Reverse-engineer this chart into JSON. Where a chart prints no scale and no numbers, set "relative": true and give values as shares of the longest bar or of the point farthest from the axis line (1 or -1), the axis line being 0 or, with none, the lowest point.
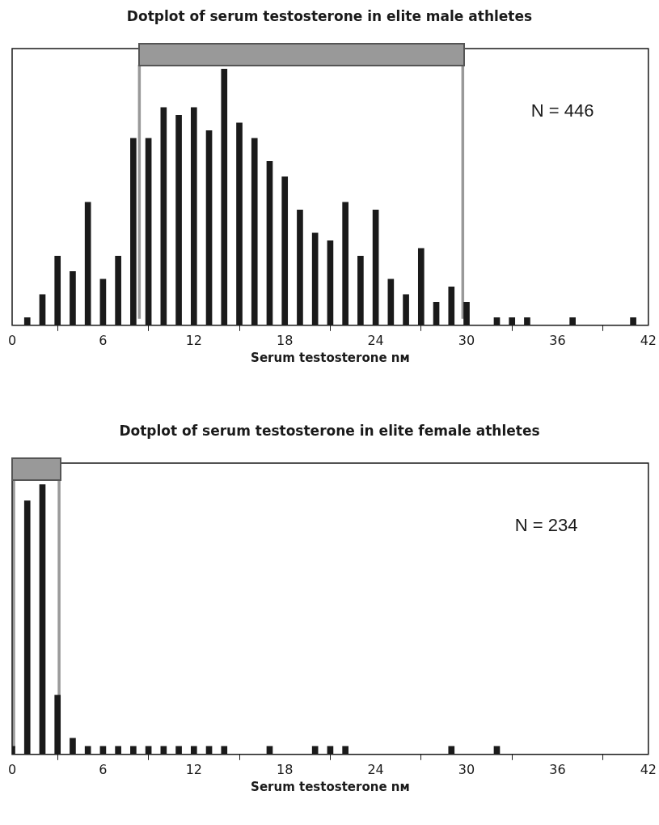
{
  "chart_data": [
    {
      "type": "bar",
      "title": "Dotplot of serum testosterone in elite male athletes",
      "xlabel": "Serum testosterone nᴍ",
      "relative": true,
      "grid": false,
      "legend": false,
      "x": [
        1,
        2,
        3,
        4,
        5,
        6,
        7,
        8,
        9,
        10,
        11,
        12,
        13,
        14,
        15,
        16,
        17,
        18,
        19,
        20,
        21,
        22,
        23,
        24,
        25,
        26,
        27,
        28,
        29,
        30,
        32,
        33,
        34,
        37,
        41
      ],
      "series": [
        {
          "color": "#1a1a1a",
          "values": [
            0.03,
            0.12,
            0.27,
            0.21,
            0.48,
            0.18,
            0.27,
            0.73,
            0.73,
            0.85,
            0.82,
            0.85,
            0.76,
            1,
            0.79,
            0.73,
            0.64,
            0.58,
            0.45,
            0.36,
            0.33,
            0.48,
            0.27,
            0.45,
            0.18,
            0.12,
            0.3,
            0.09,
            0.15,
            0.09,
            0.03,
            0.03,
            0.03,
            0.03,
            0.03
          ]
        }
      ],
      "xlim": [
        0,
        42
      ],
      "xticks": [
        0,
        6,
        12,
        18,
        24,
        30,
        36,
        42
      ],
      "ref_lines": [
        {
          "axis": "x",
          "value": 8.4,
          "color": "#999999"
        },
        {
          "axis": "x",
          "value": 29.75,
          "color": "#999999"
        }
      ],
      "annotations": [
        "N = 446"
      ]
    },
    {
      "type": "bar",
      "title": "Dotplot of serum testosterone in elite female athletes",
      "xlabel": "Serum testosterone nᴍ",
      "relative": true,
      "grid": false,
      "legend": false,
      "x": [
        0,
        1,
        2,
        3,
        4,
        5,
        6,
        7,
        8,
        9,
        10,
        11,
        12,
        13,
        14,
        17,
        20,
        21,
        22,
        29,
        32
      ],
      "series": [
        {
          "color": "#1a1a1a",
          "values": [
            0.03,
            0.94,
            1,
            0.22,
            0.06,
            0.03,
            0.03,
            0.03,
            0.03,
            0.03,
            0.03,
            0.03,
            0.03,
            0.03,
            0.03,
            0.03,
            0.03,
            0.03,
            0.03,
            0.03,
            0.03
          ]
        }
      ],
      "xlim": [
        0,
        42
      ],
      "xticks": [
        0,
        6,
        12,
        18,
        24,
        30,
        36,
        42
      ],
      "ref_lines": [
        {
          "axis": "x",
          "value": 0,
          "color": "#999999"
        },
        {
          "axis": "x",
          "value": 3.1,
          "color": "#999999"
        }
      ],
      "annotations": [
        "N = 234"
      ]
    }
  ]
}
